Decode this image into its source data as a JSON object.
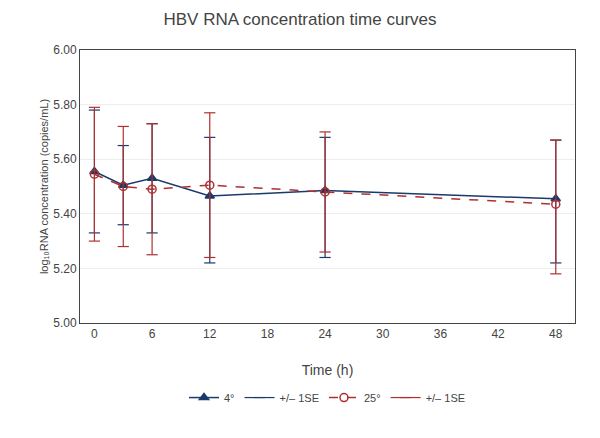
{
  "chart_data": {
    "type": "line",
    "title": "HBV RNA concentration time curves",
    "xlabel": "Time (h)",
    "ylabel": "log₁₀RNA concentration (copies/mL)",
    "x": [
      0,
      3,
      6,
      12,
      24,
      48
    ],
    "xlim": [
      -1.5,
      50
    ],
    "xticks": [
      0,
      6,
      12,
      18,
      24,
      30,
      36,
      42,
      48
    ],
    "ylim": [
      5.0,
      6.0
    ],
    "yticks": [
      {
        "value": 5.0,
        "label": "5.00"
      },
      {
        "value": 5.2,
        "label": "5.20"
      },
      {
        "value": 5.4,
        "label": "5.40"
      },
      {
        "value": 5.6,
        "label": "5.60"
      },
      {
        "value": 5.8,
        "label": "5.80"
      },
      {
        "value": 6.0,
        "label": "6.00"
      }
    ],
    "grid": "y",
    "legend": "bottom",
    "series": [
      {
        "name": "4°",
        "color": "#1a3a6b",
        "marker": "triangle-up",
        "line_style": "solid",
        "values": [
          5.555,
          5.505,
          5.53,
          5.465,
          5.485,
          5.455
        ],
        "se_upper": [
          5.78,
          5.65,
          5.73,
          5.68,
          5.68,
          5.67
        ],
        "se_lower": [
          5.33,
          5.36,
          5.33,
          5.22,
          5.24,
          5.22
        ],
        "se_name": "+/– 1SE"
      },
      {
        "name": "25°",
        "color": "#b03030",
        "marker": "circle-open",
        "line_style": "dash",
        "values": [
          5.545,
          5.5,
          5.49,
          5.505,
          5.48,
          5.435
        ],
        "se_upper": [
          5.79,
          5.72,
          5.73,
          5.77,
          5.7,
          5.67
        ],
        "se_lower": [
          5.3,
          5.28,
          5.25,
          5.24,
          5.26,
          5.18
        ],
        "se_name": "+/– 1SE"
      }
    ]
  }
}
